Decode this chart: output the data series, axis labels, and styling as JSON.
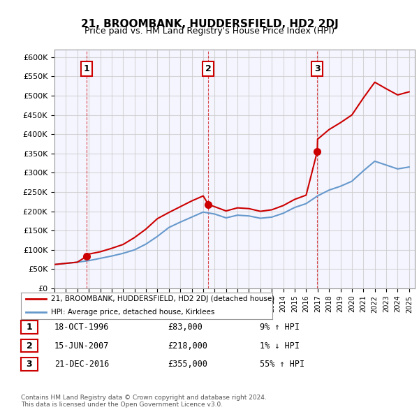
{
  "title": "21, BROOMBANK, HUDDERSFIELD, HD2 2DJ",
  "subtitle": "Price paid vs. HM Land Registry's House Price Index (HPI)",
  "ylabel_ticks": [
    "£0",
    "£50K",
    "£100K",
    "£150K",
    "£200K",
    "£250K",
    "£300K",
    "£350K",
    "£400K",
    "£450K",
    "£500K",
    "£550K",
    "£600K"
  ],
  "ytick_values": [
    0,
    50000,
    100000,
    150000,
    200000,
    250000,
    300000,
    350000,
    400000,
    450000,
    500000,
    550000,
    600000
  ],
  "xlim": [
    1994.0,
    2025.5
  ],
  "ylim": [
    0,
    620000
  ],
  "sale_dates": [
    1996.79,
    2007.45,
    2016.97
  ],
  "sale_prices": [
    83000,
    218000,
    355000
  ],
  "sale_labels": [
    "1",
    "2",
    "3"
  ],
  "red_line_color": "#cc0000",
  "blue_line_color": "#6699cc",
  "sale_marker_color": "#cc0000",
  "grid_color": "#cccccc",
  "background_color": "#f5f5ff",
  "legend_items": [
    "21, BROOMBANK, HUDDERSFIELD, HD2 2DJ (detached house)",
    "HPI: Average price, detached house, Kirklees"
  ],
  "table_rows": [
    [
      "1",
      "18-OCT-1996",
      "£83,000",
      "9% ↑ HPI"
    ],
    [
      "2",
      "15-JUN-2007",
      "£218,000",
      "1% ↓ HPI"
    ],
    [
      "3",
      "21-DEC-2016",
      "£355,000",
      "55% ↑ HPI"
    ]
  ],
  "footer": "Contains HM Land Registry data © Crown copyright and database right 2024.\nThis data is licensed under the Open Government Licence v3.0.",
  "vline_dates": [
    1996.79,
    2007.45,
    2016.97
  ],
  "hpi_years": [
    1994,
    1995,
    1996,
    1997,
    1998,
    1999,
    2000,
    2001,
    2002,
    2003,
    2004,
    2005,
    2006,
    2007,
    2008,
    2009,
    2010,
    2011,
    2012,
    2013,
    2014,
    2015,
    2016,
    2017,
    2018,
    2019,
    2020,
    2021,
    2022,
    2023,
    2024,
    2025
  ],
  "hpi_values": [
    62000,
    65000,
    68000,
    72000,
    78000,
    84000,
    91000,
    100000,
    115000,
    135000,
    158000,
    172000,
    185000,
    198000,
    193000,
    183000,
    190000,
    188000,
    182000,
    185000,
    195000,
    210000,
    220000,
    240000,
    255000,
    265000,
    278000,
    305000,
    330000,
    320000,
    310000,
    315000
  ],
  "red_line_years": [
    1994,
    1995,
    1996,
    1996.79,
    1997,
    1998,
    1999,
    2000,
    2001,
    2002,
    2003,
    2004,
    2005,
    2006,
    2007,
    2007.45,
    2008,
    2009,
    2010,
    2011,
    2012,
    2013,
    2014,
    2015,
    2016,
    2016.97,
    2017,
    2018,
    2019,
    2020,
    2021,
    2022,
    2023,
    2024,
    2025
  ],
  "red_line_values": [
    62000,
    65000,
    68000,
    83000,
    89000,
    95000,
    104000,
    114000,
    132000,
    154000,
    181000,
    197000,
    212000,
    227000,
    240000,
    218000,
    212000,
    201000,
    209000,
    207000,
    200000,
    204000,
    215000,
    231000,
    242000,
    355000,
    387000,
    412000,
    430000,
    450000,
    494000,
    535000,
    518000,
    502000,
    510000
  ]
}
